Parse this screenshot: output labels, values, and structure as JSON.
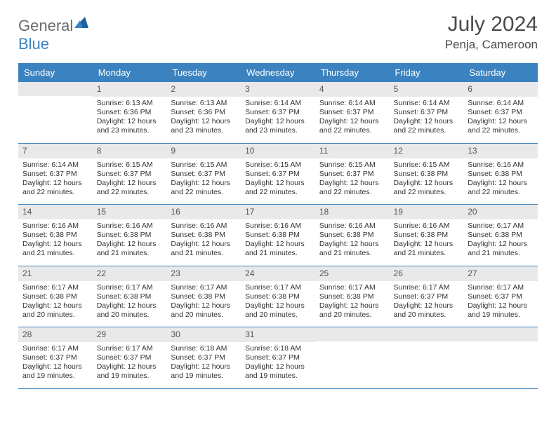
{
  "logo": {
    "general": "General",
    "blue": "Blue"
  },
  "title": "July 2024",
  "location": "Penja, Cameroon",
  "colors": {
    "header_bg": "#3b83c0",
    "header_text": "#ffffff",
    "daynum_bg": "#e9e9e9",
    "border": "#3b83c0",
    "body_text": "#333333",
    "title_text": "#4a4a4a",
    "logo_gray": "#6b6b6b"
  },
  "weekdays": [
    "Sunday",
    "Monday",
    "Tuesday",
    "Wednesday",
    "Thursday",
    "Friday",
    "Saturday"
  ],
  "weeks": [
    [
      null,
      {
        "n": "1",
        "sr": "Sunrise: 6:13 AM",
        "ss": "Sunset: 6:36 PM",
        "d1": "Daylight: 12 hours",
        "d2": "and 23 minutes."
      },
      {
        "n": "2",
        "sr": "Sunrise: 6:13 AM",
        "ss": "Sunset: 6:36 PM",
        "d1": "Daylight: 12 hours",
        "d2": "and 23 minutes."
      },
      {
        "n": "3",
        "sr": "Sunrise: 6:14 AM",
        "ss": "Sunset: 6:37 PM",
        "d1": "Daylight: 12 hours",
        "d2": "and 23 minutes."
      },
      {
        "n": "4",
        "sr": "Sunrise: 6:14 AM",
        "ss": "Sunset: 6:37 PM",
        "d1": "Daylight: 12 hours",
        "d2": "and 22 minutes."
      },
      {
        "n": "5",
        "sr": "Sunrise: 6:14 AM",
        "ss": "Sunset: 6:37 PM",
        "d1": "Daylight: 12 hours",
        "d2": "and 22 minutes."
      },
      {
        "n": "6",
        "sr": "Sunrise: 6:14 AM",
        "ss": "Sunset: 6:37 PM",
        "d1": "Daylight: 12 hours",
        "d2": "and 22 minutes."
      }
    ],
    [
      {
        "n": "7",
        "sr": "Sunrise: 6:14 AM",
        "ss": "Sunset: 6:37 PM",
        "d1": "Daylight: 12 hours",
        "d2": "and 22 minutes."
      },
      {
        "n": "8",
        "sr": "Sunrise: 6:15 AM",
        "ss": "Sunset: 6:37 PM",
        "d1": "Daylight: 12 hours",
        "d2": "and 22 minutes."
      },
      {
        "n": "9",
        "sr": "Sunrise: 6:15 AM",
        "ss": "Sunset: 6:37 PM",
        "d1": "Daylight: 12 hours",
        "d2": "and 22 minutes."
      },
      {
        "n": "10",
        "sr": "Sunrise: 6:15 AM",
        "ss": "Sunset: 6:37 PM",
        "d1": "Daylight: 12 hours",
        "d2": "and 22 minutes."
      },
      {
        "n": "11",
        "sr": "Sunrise: 6:15 AM",
        "ss": "Sunset: 6:37 PM",
        "d1": "Daylight: 12 hours",
        "d2": "and 22 minutes."
      },
      {
        "n": "12",
        "sr": "Sunrise: 6:15 AM",
        "ss": "Sunset: 6:38 PM",
        "d1": "Daylight: 12 hours",
        "d2": "and 22 minutes."
      },
      {
        "n": "13",
        "sr": "Sunrise: 6:16 AM",
        "ss": "Sunset: 6:38 PM",
        "d1": "Daylight: 12 hours",
        "d2": "and 22 minutes."
      }
    ],
    [
      {
        "n": "14",
        "sr": "Sunrise: 6:16 AM",
        "ss": "Sunset: 6:38 PM",
        "d1": "Daylight: 12 hours",
        "d2": "and 21 minutes."
      },
      {
        "n": "15",
        "sr": "Sunrise: 6:16 AM",
        "ss": "Sunset: 6:38 PM",
        "d1": "Daylight: 12 hours",
        "d2": "and 21 minutes."
      },
      {
        "n": "16",
        "sr": "Sunrise: 6:16 AM",
        "ss": "Sunset: 6:38 PM",
        "d1": "Daylight: 12 hours",
        "d2": "and 21 minutes."
      },
      {
        "n": "17",
        "sr": "Sunrise: 6:16 AM",
        "ss": "Sunset: 6:38 PM",
        "d1": "Daylight: 12 hours",
        "d2": "and 21 minutes."
      },
      {
        "n": "18",
        "sr": "Sunrise: 6:16 AM",
        "ss": "Sunset: 6:38 PM",
        "d1": "Daylight: 12 hours",
        "d2": "and 21 minutes."
      },
      {
        "n": "19",
        "sr": "Sunrise: 6:16 AM",
        "ss": "Sunset: 6:38 PM",
        "d1": "Daylight: 12 hours",
        "d2": "and 21 minutes."
      },
      {
        "n": "20",
        "sr": "Sunrise: 6:17 AM",
        "ss": "Sunset: 6:38 PM",
        "d1": "Daylight: 12 hours",
        "d2": "and 21 minutes."
      }
    ],
    [
      {
        "n": "21",
        "sr": "Sunrise: 6:17 AM",
        "ss": "Sunset: 6:38 PM",
        "d1": "Daylight: 12 hours",
        "d2": "and 20 minutes."
      },
      {
        "n": "22",
        "sr": "Sunrise: 6:17 AM",
        "ss": "Sunset: 6:38 PM",
        "d1": "Daylight: 12 hours",
        "d2": "and 20 minutes."
      },
      {
        "n": "23",
        "sr": "Sunrise: 6:17 AM",
        "ss": "Sunset: 6:38 PM",
        "d1": "Daylight: 12 hours",
        "d2": "and 20 minutes."
      },
      {
        "n": "24",
        "sr": "Sunrise: 6:17 AM",
        "ss": "Sunset: 6:38 PM",
        "d1": "Daylight: 12 hours",
        "d2": "and 20 minutes."
      },
      {
        "n": "25",
        "sr": "Sunrise: 6:17 AM",
        "ss": "Sunset: 6:38 PM",
        "d1": "Daylight: 12 hours",
        "d2": "and 20 minutes."
      },
      {
        "n": "26",
        "sr": "Sunrise: 6:17 AM",
        "ss": "Sunset: 6:37 PM",
        "d1": "Daylight: 12 hours",
        "d2": "and 20 minutes."
      },
      {
        "n": "27",
        "sr": "Sunrise: 6:17 AM",
        "ss": "Sunset: 6:37 PM",
        "d1": "Daylight: 12 hours",
        "d2": "and 19 minutes."
      }
    ],
    [
      {
        "n": "28",
        "sr": "Sunrise: 6:17 AM",
        "ss": "Sunset: 6:37 PM",
        "d1": "Daylight: 12 hours",
        "d2": "and 19 minutes."
      },
      {
        "n": "29",
        "sr": "Sunrise: 6:17 AM",
        "ss": "Sunset: 6:37 PM",
        "d1": "Daylight: 12 hours",
        "d2": "and 19 minutes."
      },
      {
        "n": "30",
        "sr": "Sunrise: 6:18 AM",
        "ss": "Sunset: 6:37 PM",
        "d1": "Daylight: 12 hours",
        "d2": "and 19 minutes."
      },
      {
        "n": "31",
        "sr": "Sunrise: 6:18 AM",
        "ss": "Sunset: 6:37 PM",
        "d1": "Daylight: 12 hours",
        "d2": "and 19 minutes."
      },
      null,
      null,
      null
    ]
  ]
}
